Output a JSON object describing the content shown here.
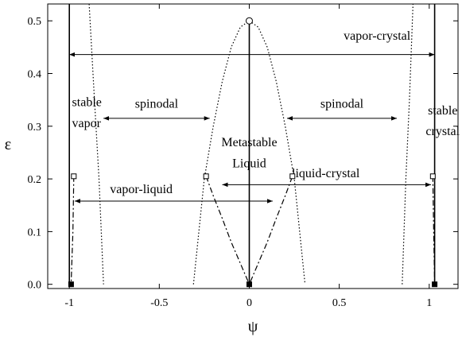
{
  "chart_data": {
    "type": "line",
    "title": "",
    "xlabel": "ψ",
    "ylabel": "ε",
    "xlim": [
      -1.12,
      1.16
    ],
    "ylim": [
      -0.008,
      0.532
    ],
    "xticks": [
      {
        "v": -1,
        "label": "-1"
      },
      {
        "v": -0.5,
        "label": "-0.5"
      },
      {
        "v": 0,
        "label": "0"
      },
      {
        "v": 0.5,
        "label": "0.5"
      },
      {
        "v": 1,
        "label": "1"
      }
    ],
    "yticks": [
      {
        "v": 0.0,
        "label": "0.0"
      },
      {
        "v": 0.1,
        "label": "0.1"
      },
      {
        "v": 0.2,
        "label": "0.2"
      },
      {
        "v": 0.3,
        "label": "0.3"
      },
      {
        "v": 0.4,
        "label": "0.4"
      },
      {
        "v": 0.5,
        "label": "0.5"
      }
    ],
    "grid": false,
    "series": [
      {
        "style": "dotted",
        "points": [
          [
            -0.31,
            0
          ],
          [
            -0.25,
            0.2
          ],
          [
            -0.2,
            0.3
          ],
          [
            -0.15,
            0.385
          ],
          [
            -0.1,
            0.45
          ],
          [
            -0.05,
            0.488
          ],
          [
            0,
            0.5
          ],
          [
            0.05,
            0.488
          ],
          [
            0.1,
            0.45
          ],
          [
            0.15,
            0.385
          ],
          [
            0.2,
            0.3
          ],
          [
            0.25,
            0.2
          ],
          [
            0.31,
            0
          ]
        ]
      },
      {
        "style": "dotted",
        "points": [
          [
            -0.89,
            0.532
          ],
          [
            -0.86,
            0.35
          ],
          [
            -0.835,
            0.2
          ],
          [
            -0.81,
            0
          ]
        ]
      },
      {
        "style": "dotted",
        "points": [
          [
            0.85,
            0
          ],
          [
            0.87,
            0.2
          ],
          [
            0.89,
            0.35
          ],
          [
            0.91,
            0.532
          ]
        ]
      },
      {
        "style": "dashdot",
        "points": [
          [
            -0.24,
            0.205
          ],
          [
            -0.2,
            0.168
          ],
          [
            -0.15,
            0.125
          ],
          [
            -0.1,
            0.08
          ],
          [
            -0.05,
            0.04
          ],
          [
            0,
            0
          ],
          [
            0.05,
            0.04
          ],
          [
            0.1,
            0.08
          ],
          [
            0.15,
            0.125
          ],
          [
            0.2,
            0.168
          ],
          [
            0.24,
            0.205
          ]
        ]
      },
      {
        "style": "dashdot",
        "points": [
          [
            -0.975,
            0.205
          ],
          [
            -0.98,
            0.1
          ],
          [
            -0.99,
            0
          ]
        ]
      },
      {
        "style": "dashdot",
        "points": [
          [
            1.02,
            0.205
          ],
          [
            1.025,
            0.1
          ],
          [
            1.03,
            0
          ]
        ]
      },
      {
        "style": "solid",
        "points": [
          [
            -1,
            0
          ],
          [
            -1,
            0.532
          ]
        ]
      },
      {
        "style": "solid",
        "points": [
          [
            1.03,
            0
          ],
          [
            1.03,
            0.532
          ]
        ]
      },
      {
        "style": "solid",
        "points": [
          [
            0,
            0
          ],
          [
            0,
            0.5
          ]
        ]
      }
    ],
    "markers": [
      {
        "shape": "open-circle",
        "x": 0,
        "y": 0.5
      },
      {
        "shape": "open-square",
        "x": -0.975,
        "y": 0.205
      },
      {
        "shape": "open-square",
        "x": -0.24,
        "y": 0.205
      },
      {
        "shape": "open-square",
        "x": 0.24,
        "y": 0.205
      },
      {
        "shape": "open-square",
        "x": 1.02,
        "y": 0.205
      },
      {
        "shape": "filled-square",
        "x": -0.99,
        "y": 0
      },
      {
        "shape": "filled-square",
        "x": 0,
        "y": 0
      },
      {
        "shape": "filled-square",
        "x": 1.03,
        "y": 0
      }
    ],
    "arrows": [
      {
        "x1": -1,
        "x2": 1.03,
        "y": 0.436,
        "label": "vapor-crystal",
        "label_x": 0.71,
        "label_y": 0.464,
        "anchor": "middle"
      },
      {
        "x1": -0.81,
        "x2": -0.22,
        "y": 0.315,
        "label": "spinodal",
        "label_x": -0.515,
        "label_y": 0.335,
        "anchor": "middle"
      },
      {
        "x1": 0.21,
        "x2": 0.82,
        "y": 0.315,
        "label": "spinodal",
        "label_x": 0.515,
        "label_y": 0.335,
        "anchor": "middle"
      },
      {
        "x1": -0.97,
        "x2": 0.13,
        "y": 0.158,
        "label": "vapor-liquid",
        "label_x": -0.6,
        "label_y": 0.173,
        "anchor": "middle"
      },
      {
        "x1": -0.15,
        "x2": 1.01,
        "y": 0.189,
        "label": "liquid-crystal",
        "label_x": 0.425,
        "label_y": 0.203,
        "anchor": "middle"
      }
    ],
    "annotations": [
      {
        "text": "stable",
        "x": -0.985,
        "y": 0.338,
        "anchor": "start"
      },
      {
        "text": "vapor",
        "x": -0.985,
        "y": 0.298,
        "anchor": "start"
      },
      {
        "text": "stable",
        "x": 1.075,
        "y": 0.322,
        "anchor": "middle"
      },
      {
        "text": "crystal",
        "x": 1.075,
        "y": 0.283,
        "anchor": "middle"
      },
      {
        "text": "Metastable",
        "x": 0,
        "y": 0.262,
        "anchor": "middle"
      },
      {
        "text": "Liquid",
        "x": 0,
        "y": 0.222,
        "anchor": "middle"
      }
    ]
  }
}
